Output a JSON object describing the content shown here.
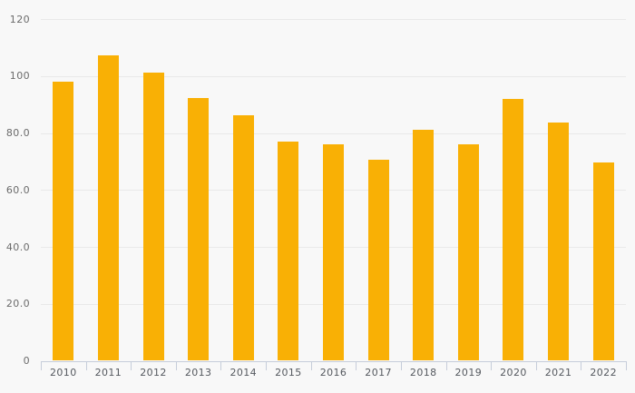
{
  "chart_data": {
    "type": "bar",
    "title": "",
    "categories": [
      "2010",
      "2011",
      "2012",
      "2013",
      "2014",
      "2015",
      "2016",
      "2017",
      "2018",
      "2019",
      "2020",
      "2021",
      "2022"
    ],
    "values": [
      98.0,
      107.3,
      101.2,
      92.2,
      86.3,
      77.1,
      76.1,
      70.6,
      81.0,
      76.0,
      91.8,
      83.7,
      69.5
    ],
    "xlabel": "",
    "ylabel": "",
    "ylim": [
      0,
      120
    ],
    "y_ticks": [
      0,
      20,
      40,
      60,
      80,
      100,
      120
    ],
    "y_tick_labels": [
      "0",
      "20.0",
      "40.0",
      "60.0",
      "80.0",
      "100",
      "120"
    ],
    "grid": true,
    "legend": false,
    "colors": {
      "bar": "#f9b005",
      "background": "#f8f8f8",
      "gridline": "#e9e9e9",
      "axis": "#c6cdda",
      "y_label_text": "#6b6b6b",
      "x_label_text": "#55595f"
    }
  }
}
